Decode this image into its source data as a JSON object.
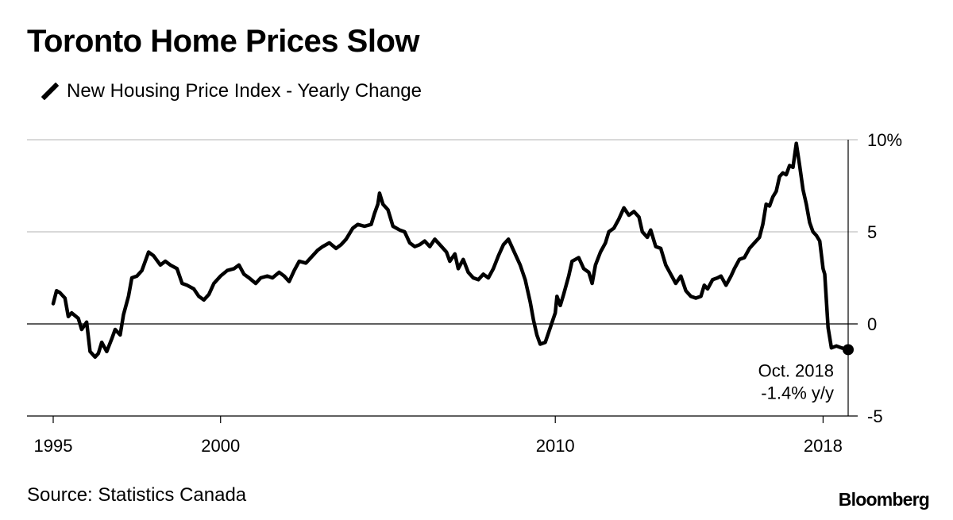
{
  "title": "Toronto Home Prices Slow",
  "source": "Source: Statistics Canada",
  "brand": "Bloomberg",
  "colors": {
    "line": "#000000",
    "grid": "#d9d9d9",
    "axis": "#000000"
  },
  "chart_data": {
    "type": "line",
    "title": "Toronto Home Prices Slow",
    "legend_position": "top-left",
    "grid": true,
    "xlim": [
      1995.0,
      2018.75
    ],
    "ylim": [
      -5,
      10
    ],
    "x_ticks": [
      {
        "value": 1995,
        "label": "1995"
      },
      {
        "value": 2000,
        "label": "2000"
      },
      {
        "value": 2010,
        "label": "2010"
      },
      {
        "value": 2018,
        "label": "2018"
      }
    ],
    "y_ticks": [
      {
        "value": 10,
        "label": "10%"
      },
      {
        "value": 5,
        "label": "5"
      },
      {
        "value": 0,
        "label": "0"
      },
      {
        "value": -5,
        "label": "-5"
      }
    ],
    "annotation": {
      "x": 2018.75,
      "y": -1.4,
      "lines": [
        "Oct. 2018",
        "-1.4% y/y"
      ]
    },
    "series": [
      {
        "name": "New Housing Price Index - Yearly Change",
        "points": [
          [
            1995.0,
            1.1
          ],
          [
            1995.1,
            1.8
          ],
          [
            1995.2,
            1.7
          ],
          [
            1995.35,
            1.4
          ],
          [
            1995.45,
            0.4
          ],
          [
            1995.55,
            0.6
          ],
          [
            1995.75,
            0.3
          ],
          [
            1995.85,
            -0.3
          ],
          [
            1996.0,
            0.1
          ],
          [
            1996.1,
            -1.5
          ],
          [
            1996.25,
            -1.8
          ],
          [
            1996.35,
            -1.6
          ],
          [
            1996.45,
            -1.0
          ],
          [
            1996.6,
            -1.5
          ],
          [
            1996.75,
            -0.8
          ],
          [
            1996.85,
            -0.3
          ],
          [
            1997.0,
            -0.6
          ],
          [
            1997.1,
            0.5
          ],
          [
            1997.25,
            1.5
          ],
          [
            1997.35,
            2.5
          ],
          [
            1997.5,
            2.6
          ],
          [
            1997.65,
            2.9
          ],
          [
            1997.75,
            3.4
          ],
          [
            1997.85,
            3.9
          ],
          [
            1998.0,
            3.7
          ],
          [
            1998.2,
            3.2
          ],
          [
            1998.35,
            3.4
          ],
          [
            1998.5,
            3.2
          ],
          [
            1998.7,
            3.0
          ],
          [
            1998.85,
            2.2
          ],
          [
            1999.0,
            2.1
          ],
          [
            1999.2,
            1.9
          ],
          [
            1999.35,
            1.5
          ],
          [
            1999.5,
            1.3
          ],
          [
            1999.65,
            1.6
          ],
          [
            1999.8,
            2.2
          ],
          [
            2000.0,
            2.6
          ],
          [
            2000.2,
            2.9
          ],
          [
            2000.4,
            3.0
          ],
          [
            2000.55,
            3.2
          ],
          [
            2000.7,
            2.7
          ],
          [
            2000.85,
            2.5
          ],
          [
            2001.05,
            2.2
          ],
          [
            2001.2,
            2.5
          ],
          [
            2001.4,
            2.6
          ],
          [
            2001.55,
            2.5
          ],
          [
            2001.75,
            2.8
          ],
          [
            2001.9,
            2.6
          ],
          [
            2002.05,
            2.3
          ],
          [
            2002.2,
            2.9
          ],
          [
            2002.35,
            3.4
          ],
          [
            2002.55,
            3.3
          ],
          [
            2002.75,
            3.7
          ],
          [
            2002.9,
            4.0
          ],
          [
            2003.05,
            4.2
          ],
          [
            2003.25,
            4.4
          ],
          [
            2003.45,
            4.1
          ],
          [
            2003.6,
            4.3
          ],
          [
            2003.75,
            4.6
          ],
          [
            2003.95,
            5.2
          ],
          [
            2004.1,
            5.4
          ],
          [
            2004.3,
            5.3
          ],
          [
            2004.5,
            5.4
          ],
          [
            2004.6,
            6.0
          ],
          [
            2004.7,
            6.5
          ],
          [
            2004.75,
            7.1
          ],
          [
            2004.85,
            6.5
          ],
          [
            2005.0,
            6.2
          ],
          [
            2005.15,
            5.3
          ],
          [
            2005.35,
            5.1
          ],
          [
            2005.5,
            5.0
          ],
          [
            2005.65,
            4.4
          ],
          [
            2005.8,
            4.2
          ],
          [
            2005.95,
            4.3
          ],
          [
            2006.1,
            4.5
          ],
          [
            2006.25,
            4.2
          ],
          [
            2006.4,
            4.6
          ],
          [
            2006.55,
            4.3
          ],
          [
            2006.75,
            3.9
          ],
          [
            2006.85,
            3.4
          ],
          [
            2007.0,
            3.8
          ],
          [
            2007.1,
            3.0
          ],
          [
            2007.25,
            3.5
          ],
          [
            2007.4,
            2.8
          ],
          [
            2007.55,
            2.5
          ],
          [
            2007.7,
            2.4
          ],
          [
            2007.85,
            2.7
          ],
          [
            2008.0,
            2.5
          ],
          [
            2008.15,
            3.0
          ],
          [
            2008.3,
            3.7
          ],
          [
            2008.45,
            4.3
          ],
          [
            2008.6,
            4.6
          ],
          [
            2008.75,
            4.0
          ],
          [
            2008.95,
            3.2
          ],
          [
            2009.1,
            2.4
          ],
          [
            2009.25,
            1.2
          ],
          [
            2009.35,
            0.2
          ],
          [
            2009.45,
            -0.6
          ],
          [
            2009.55,
            -1.1
          ],
          [
            2009.7,
            -1.0
          ],
          [
            2009.85,
            -0.2
          ],
          [
            2010.0,
            0.6
          ],
          [
            2010.05,
            1.5
          ],
          [
            2010.15,
            1.0
          ],
          [
            2010.25,
            1.6
          ],
          [
            2010.4,
            2.6
          ],
          [
            2010.5,
            3.4
          ],
          [
            2010.6,
            3.5
          ],
          [
            2010.7,
            3.6
          ],
          [
            2010.85,
            3.0
          ],
          [
            2011.0,
            2.8
          ],
          [
            2011.1,
            2.2
          ],
          [
            2011.2,
            3.2
          ],
          [
            2011.35,
            3.9
          ],
          [
            2011.5,
            4.4
          ],
          [
            2011.6,
            5.0
          ],
          [
            2011.75,
            5.2
          ],
          [
            2011.9,
            5.7
          ],
          [
            2012.05,
            6.3
          ],
          [
            2012.2,
            5.9
          ],
          [
            2012.35,
            6.1
          ],
          [
            2012.5,
            5.8
          ],
          [
            2012.6,
            5.0
          ],
          [
            2012.75,
            4.7
          ],
          [
            2012.85,
            5.1
          ],
          [
            2013.0,
            4.2
          ],
          [
            2013.15,
            4.1
          ],
          [
            2013.3,
            3.2
          ],
          [
            2013.45,
            2.7
          ],
          [
            2013.6,
            2.2
          ],
          [
            2013.75,
            2.6
          ],
          [
            2013.9,
            1.8
          ],
          [
            2014.05,
            1.5
          ],
          [
            2014.2,
            1.4
          ],
          [
            2014.35,
            1.5
          ],
          [
            2014.45,
            2.1
          ],
          [
            2014.55,
            1.9
          ],
          [
            2014.7,
            2.4
          ],
          [
            2014.85,
            2.5
          ],
          [
            2014.95,
            2.6
          ],
          [
            2015.1,
            2.1
          ],
          [
            2015.25,
            2.6
          ],
          [
            2015.35,
            3.0
          ],
          [
            2015.5,
            3.5
          ],
          [
            2015.65,
            3.6
          ],
          [
            2015.8,
            4.1
          ],
          [
            2015.95,
            4.4
          ],
          [
            2016.1,
            4.7
          ],
          [
            2016.2,
            5.4
          ],
          [
            2016.3,
            6.5
          ],
          [
            2016.4,
            6.4
          ],
          [
            2016.5,
            6.9
          ],
          [
            2016.6,
            7.2
          ],
          [
            2016.7,
            8.0
          ],
          [
            2016.8,
            8.2
          ],
          [
            2016.9,
            8.1
          ],
          [
            2017.0,
            8.6
          ],
          [
            2017.1,
            8.5
          ],
          [
            2017.2,
            9.8
          ],
          [
            2017.3,
            8.6
          ],
          [
            2017.4,
            7.3
          ],
          [
            2017.5,
            6.5
          ],
          [
            2017.6,
            5.5
          ],
          [
            2017.7,
            5.0
          ],
          [
            2017.8,
            4.8
          ],
          [
            2017.9,
            4.5
          ],
          [
            2018.0,
            3.0
          ],
          [
            2018.05,
            2.7
          ],
          [
            2018.15,
            -0.2
          ],
          [
            2018.25,
            -1.3
          ],
          [
            2018.4,
            -1.2
          ],
          [
            2018.55,
            -1.3
          ],
          [
            2018.75,
            -1.4
          ]
        ]
      }
    ]
  }
}
